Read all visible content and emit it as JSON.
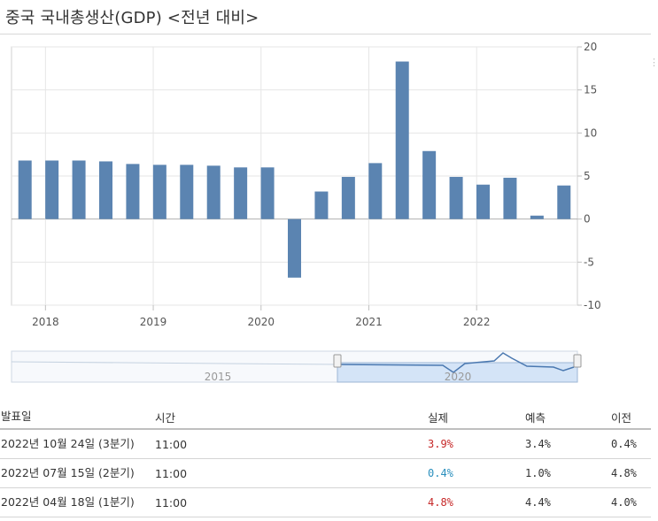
{
  "title": "중국 국내총생산(GDP) <전년 대비>",
  "colors": {
    "bar": "#5b84b1",
    "grid": "#e6e6e6",
    "navigator_line": "#4a78b0",
    "navigator_fill": "#d4e4f7",
    "actual_red": "#c62828",
    "actual_blue": "#2a8fbd"
  },
  "chart_data": {
    "type": "bar",
    "values": [
      6.8,
      6.8,
      6.8,
      6.7,
      6.4,
      6.3,
      6.3,
      6.2,
      6.0,
      6.0,
      -6.8,
      3.2,
      4.9,
      6.5,
      18.3,
      7.9,
      4.9,
      4.0,
      4.8,
      0.4,
      3.9
    ],
    "x_ticks": [
      "2018",
      "2019",
      "2020",
      "2021",
      "2022"
    ],
    "y_ticks": [
      "20",
      "15",
      "10",
      "5",
      "0",
      "-5",
      "-10"
    ],
    "ylim": [
      -10,
      20
    ],
    "grid": true,
    "y_axis_side": "right"
  },
  "navigator": {
    "labels": [
      "2015",
      "2020"
    ]
  },
  "table": {
    "headers": {
      "date": "발표일",
      "time": "시간",
      "actual": "실제",
      "forecast": "예측",
      "previous": "이전"
    },
    "rows": [
      {
        "date": "2022년 10월 24일 (3분기)",
        "time": "11:00",
        "actual": "3.9%",
        "actual_color": "red",
        "forecast": "3.4%",
        "previous": "0.4%"
      },
      {
        "date": "2022년 07월 15일 (2분기)",
        "time": "11:00",
        "actual": "0.4%",
        "actual_color": "blue",
        "forecast": "1.0%",
        "previous": "4.8%"
      },
      {
        "date": "2022년 04월 18일 (1분기)",
        "time": "11:00",
        "actual": "4.8%",
        "actual_color": "red",
        "forecast": "4.4%",
        "previous": "4.0%"
      }
    ]
  }
}
